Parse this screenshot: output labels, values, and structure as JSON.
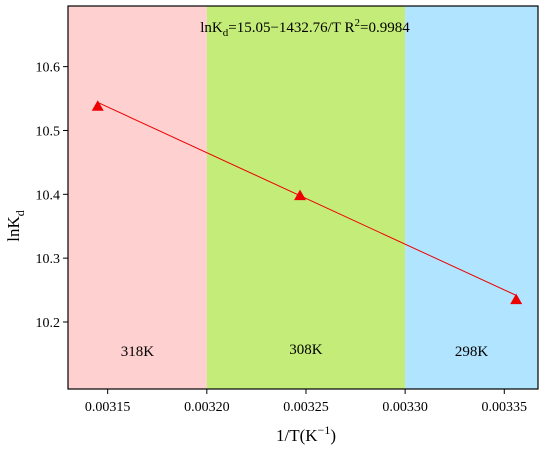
{
  "chart_data": {
    "type": "scatter",
    "title": "",
    "xlabel": "1/T(K",
    "xlabel_sup": "−1",
    "xlabel_suffix": ")",
    "ylabel": "lnK",
    "ylabel_sub": "d",
    "xlim": [
      0.00313,
      0.003367
    ],
    "ylim": [
      10.095,
      10.695
    ],
    "x_ticks": [
      0.00315,
      0.0032,
      0.00325,
      0.0033,
      0.00335
    ],
    "x_tick_labels": [
      "0.00315",
      "0.00320",
      "0.00325",
      "0.00330",
      "0.00335"
    ],
    "y_ticks": [
      10.2,
      10.3,
      10.4,
      10.5,
      10.6
    ],
    "y_tick_labels": [
      "10.2",
      "10.3",
      "10.4",
      "10.5",
      "10.6"
    ],
    "grid": false,
    "regions": [
      {
        "label": "318K",
        "x_start": 0.00313,
        "x_end": 0.0032,
        "color": "#ffd0d0"
      },
      {
        "label": "308K",
        "x_start": 0.0032,
        "x_end": 0.0033,
        "color": "#c4ec78"
      },
      {
        "label": "298K",
        "x_start": 0.0033,
        "x_end": 0.003367,
        "color": "#b0e4ff"
      }
    ],
    "series": [
      {
        "marker": "triangle",
        "color": "#ee0000",
        "x": [
          0.003145,
          0.003247,
          0.003356
        ],
        "y": [
          10.538,
          10.398,
          10.235
        ]
      }
    ],
    "fit": {
      "intercept": 15.05,
      "slope": -1432.76,
      "color": "#ee0000"
    },
    "annotation": {
      "prefix": "lnK",
      "sub": "d",
      "middle": "=15.05−1432.76/T R",
      "sup": "2",
      "suffix": "=0.9984"
    }
  }
}
